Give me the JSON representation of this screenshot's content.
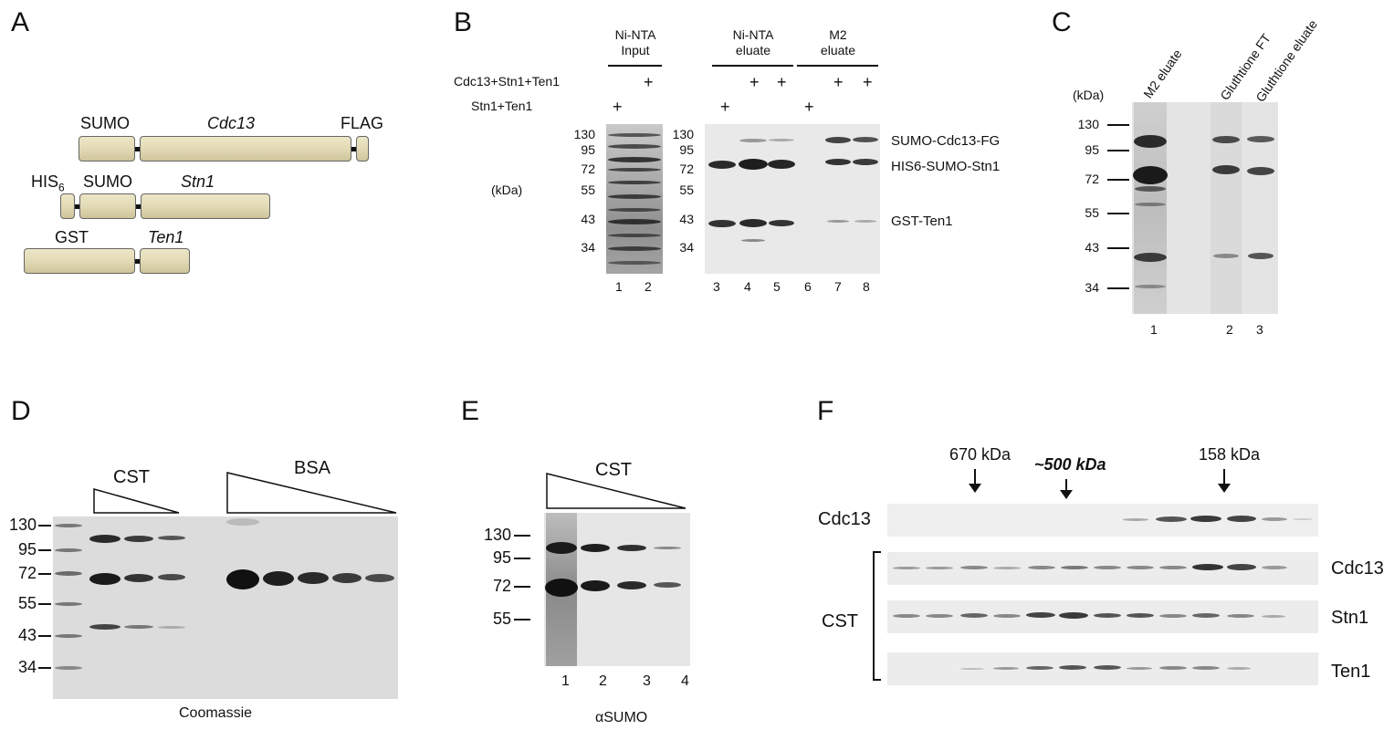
{
  "panels": {
    "A": "A",
    "B": "B",
    "C": "C",
    "D": "D",
    "E": "E",
    "F": "F"
  },
  "a": {
    "sumo1": "SUMO",
    "cdc13": "Cdc13",
    "flag": "FLAG",
    "his": "HIS",
    "his_sub": "6",
    "sumo2": "SUMO",
    "stn1": "Stn1",
    "gst": "GST",
    "ten1": "Ten1"
  },
  "b": {
    "hdr_ninta_input": [
      "Ni-NTA",
      "Input"
    ],
    "hdr_ninta_eluate": [
      "Ni-NTA",
      "eluate"
    ],
    "hdr_m2_eluate": [
      "M2",
      "eluate"
    ],
    "row1": "Cdc13+Stn1+Ten1",
    "row2": "Stn1+Ten1",
    "plus": "+",
    "kda": "(kDa)",
    "markers": [
      "130",
      "95",
      "72",
      "55",
      "43",
      "34"
    ],
    "lanes": [
      "1",
      "2",
      "3",
      "4",
      "5",
      "6",
      "7",
      "8"
    ],
    "band_labels": [
      "SUMO-Cdc13-FG",
      "HIS6-SUMO-Stn1",
      "GST-Ten1"
    ]
  },
  "c": {
    "kda": "(kDa)",
    "markers": [
      "130",
      "95",
      "72",
      "55",
      "43",
      "34"
    ],
    "col_labels": [
      "M2 eluate",
      "Gluthtione FT",
      "Gluthtione eluate"
    ],
    "lanes": [
      "1",
      "2",
      "3"
    ]
  },
  "d": {
    "cst": "CST",
    "bsa": "BSA",
    "markers": [
      "130",
      "95",
      "72",
      "55",
      "43",
      "34"
    ],
    "caption": "Coomassie"
  },
  "e": {
    "cst": "CST",
    "markers": [
      "130",
      "95",
      "72",
      "55"
    ],
    "lanes": [
      "1",
      "2",
      "3",
      "4"
    ],
    "caption": "αSUMO"
  },
  "f": {
    "m670": "670 kDa",
    "m500": "~500 kDa",
    "m158": "158 kDa",
    "cdc13_left": "Cdc13",
    "cst": "CST",
    "cdc13_right": "Cdc13",
    "stn1": "Stn1",
    "ten1": "Ten1"
  },
  "colors": {
    "construct": "#e4dcb8",
    "band": "#1a1a1a",
    "gel": "#d6d6d6"
  }
}
